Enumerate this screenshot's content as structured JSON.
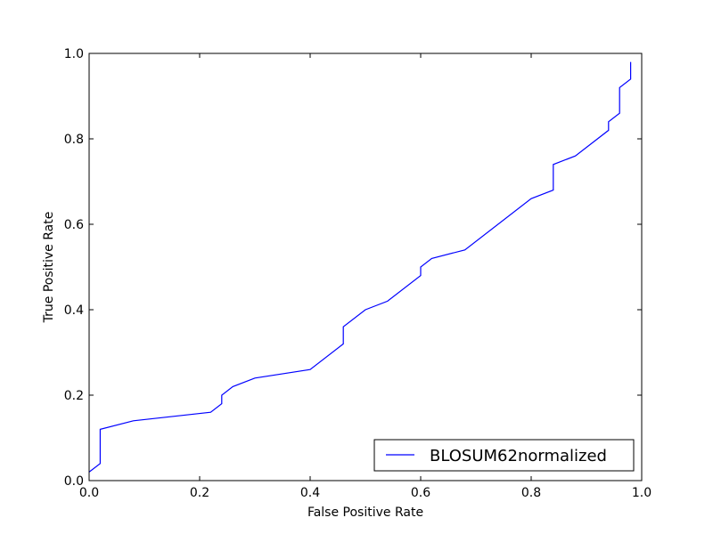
{
  "chart_data": {
    "type": "line",
    "xlabel": "False Positive Rate",
    "ylabel": "True Positive Rate",
    "xlim": [
      0.0,
      1.0
    ],
    "ylim": [
      0.0,
      1.0
    ],
    "xticks": [
      "0.0",
      "0.2",
      "0.4",
      "0.6",
      "0.8",
      "1.0"
    ],
    "yticks": [
      "0.0",
      "0.2",
      "0.4",
      "0.6",
      "0.8",
      "1.0"
    ],
    "grid": false,
    "legend_position": "bottom-right",
    "series": [
      {
        "name": "BLOSUM62normalized",
        "color": "#0000ff",
        "x": [
          0.0,
          0.02,
          0.02,
          0.08,
          0.22,
          0.24,
          0.24,
          0.26,
          0.3,
          0.4,
          0.46,
          0.46,
          0.5,
          0.54,
          0.6,
          0.6,
          0.62,
          0.68,
          0.8,
          0.84,
          0.84,
          0.88,
          0.94,
          0.94,
          0.96,
          0.96,
          0.98,
          0.98
        ],
        "y": [
          0.02,
          0.04,
          0.12,
          0.14,
          0.16,
          0.18,
          0.2,
          0.22,
          0.24,
          0.26,
          0.32,
          0.36,
          0.4,
          0.42,
          0.48,
          0.5,
          0.52,
          0.54,
          0.66,
          0.68,
          0.74,
          0.76,
          0.82,
          0.84,
          0.86,
          0.92,
          0.94,
          0.98
        ]
      }
    ]
  }
}
